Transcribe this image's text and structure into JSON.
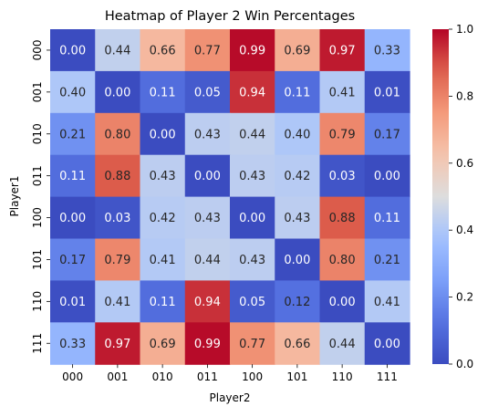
{
  "chart_data": {
    "type": "heatmap",
    "title": "Heatmap of Player 2 Win Percentages",
    "xlabel": "Player2",
    "ylabel": "Player1",
    "x_categories": [
      "000",
      "001",
      "010",
      "011",
      "100",
      "101",
      "110",
      "111"
    ],
    "y_categories": [
      "000",
      "001",
      "010",
      "011",
      "100",
      "101",
      "110",
      "111"
    ],
    "values": [
      [
        0.0,
        0.44,
        0.66,
        0.77,
        0.99,
        0.69,
        0.97,
        0.33
      ],
      [
        0.4,
        0.0,
        0.11,
        0.05,
        0.94,
        0.11,
        0.41,
        0.01
      ],
      [
        0.21,
        0.8,
        0.0,
        0.43,
        0.44,
        0.4,
        0.79,
        0.17
      ],
      [
        0.11,
        0.88,
        0.43,
        0.0,
        0.43,
        0.42,
        0.03,
        0.0
      ],
      [
        0.0,
        0.03,
        0.42,
        0.43,
        0.0,
        0.43,
        0.88,
        0.11
      ],
      [
        0.17,
        0.79,
        0.41,
        0.44,
        0.43,
        0.0,
        0.8,
        0.21
      ],
      [
        0.01,
        0.41,
        0.11,
        0.94,
        0.05,
        0.12,
        0.0,
        0.41
      ],
      [
        0.33,
        0.97,
        0.69,
        0.99,
        0.77,
        0.66,
        0.44,
        0.0
      ]
    ],
    "value_format": "2 decimals",
    "colormap": "coolwarm",
    "vmin": 0.0,
    "vmax": 1.0,
    "colorbar_ticks": [
      "0.0",
      "0.2",
      "0.4",
      "0.6",
      "0.8",
      "1.0"
    ],
    "colorbar_position": "right",
    "grid": false
  }
}
